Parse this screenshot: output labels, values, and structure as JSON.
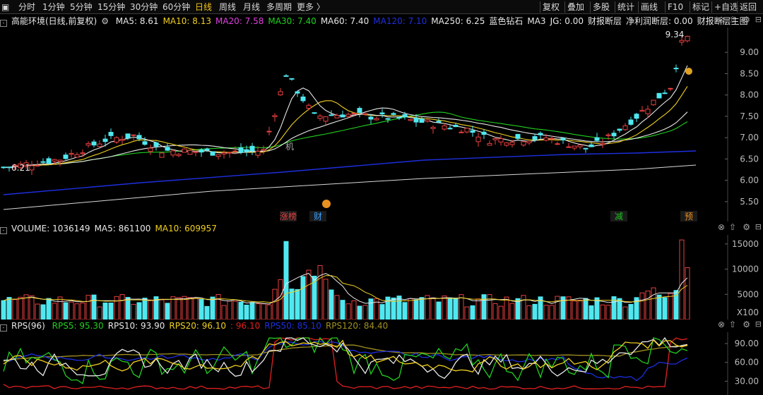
{
  "toolbar": {
    "items": [
      {
        "label": "▣"
      },
      {
        "label": "分时"
      },
      {
        "label": "1分钟"
      },
      {
        "label": "5分钟"
      },
      {
        "label": "15分钟"
      },
      {
        "label": "30分钟"
      },
      {
        "label": "60分钟"
      },
      {
        "label": "日线",
        "active": true
      },
      {
        "label": "周线"
      },
      {
        "label": "月线"
      },
      {
        "label": "多周期"
      },
      {
        "label": "更多 〉"
      }
    ],
    "right_items": [
      {
        "label": "复权"
      },
      {
        "label": "叠加"
      },
      {
        "label": "多股"
      },
      {
        "label": "统计"
      },
      {
        "label": "画线"
      },
      {
        "label": "F10"
      },
      {
        "label": "标记"
      },
      {
        "label": "+自选"
      },
      {
        "label": "返回"
      }
    ]
  },
  "price_panel": {
    "stock": "高能环境(日线,前复权)",
    "ma": [
      {
        "label": "MA5: 8.61",
        "color": "#e8e8e8"
      },
      {
        "label": "MA10: 8.13",
        "color": "#f0d020"
      },
      {
        "label": "MA20: 7.58",
        "color": "#e040e0"
      },
      {
        "label": "MA30: 7.40",
        "color": "#20d020"
      },
      {
        "label": "MA60: 7.40",
        "color": "#e8e8e8"
      },
      {
        "label": "MA120: 7.10",
        "color": "#1e2fe0"
      },
      {
        "label": "MA250: 6.25",
        "color": "#e8e8e8"
      },
      {
        "label": "蓝色钻石",
        "color": "#e8e8e8"
      },
      {
        "label": "MA3",
        "color": "#e8e8e8"
      },
      {
        "label": "JG: 0.00",
        "color": "#e8e8e8"
      },
      {
        "label": "财报断层",
        "color": "#e8e8e8"
      },
      {
        "label": "净利润断层: 0.00",
        "color": "#e8e8e8"
      },
      {
        "label": "财报断层主图",
        "color": "#e8e8e8"
      }
    ],
    "y_labels": [
      "9.00",
      "8.50",
      "8.00",
      "7.50",
      "7.00",
      "6.50",
      "6.00",
      "5.50"
    ],
    "high_label": "9.34",
    "low_label": "6.21",
    "markers": [
      {
        "text": "涨榜",
        "color": "#e04040"
      },
      {
        "text": "财",
        "color": "#3aa0ff"
      },
      {
        "text": "减",
        "color": "#20c020"
      },
      {
        "text": "预",
        "color": "#e89020"
      }
    ],
    "jg_mark": "机"
  },
  "volume_panel": {
    "title": "VOLUME: 1036149",
    "ma5": "MA5: 861100",
    "ma10": "MA10: 609957",
    "y_labels": [
      "15000",
      "10000",
      "5000"
    ],
    "unit": "X100"
  },
  "rps_panel": {
    "title": "RPS(96)",
    "items": [
      {
        "label": "RPS5: 95.30",
        "color": "#20d020"
      },
      {
        "label": "RPS10: 93.90",
        "color": "#e8e8e8"
      },
      {
        "label": "RPS20: 96.10",
        "color": "#f0d020"
      },
      {
        "label": ": 96.10",
        "color": "#e02020"
      },
      {
        "label": "RPS50: 85.10",
        "color": "#1e2fe0"
      },
      {
        "label": "RPS120: 84.40",
        "color": "#a09020"
      }
    ],
    "y_labels": [
      "90.00",
      "60.00",
      "30.00"
    ]
  },
  "colors": {
    "up": "#e84040",
    "down": "#50e8f0",
    "ma5": "#e8e8e8",
    "ma10": "#f0d020",
    "ma30": "#20d020",
    "ma120": "#1e2fe0"
  }
}
